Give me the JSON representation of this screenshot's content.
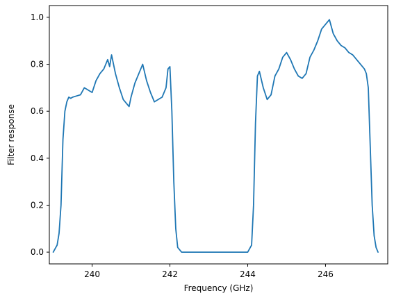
{
  "chart_data": {
    "type": "line",
    "title": "",
    "xlabel": "Frequency (GHz)",
    "ylabel": "Filter response",
    "xlim": [
      238.9,
      247.6
    ],
    "ylim": [
      -0.05,
      1.05
    ],
    "xticks": [
      240,
      242,
      244,
      246
    ],
    "yticks": [
      0.0,
      0.2,
      0.4,
      0.6,
      0.8,
      1.0
    ],
    "grid": false,
    "legend": "none",
    "series": [
      {
        "color": "#1f77b4",
        "x": [
          239.0,
          239.1,
          239.15,
          239.2,
          239.25,
          239.3,
          239.35,
          239.4,
          239.45,
          239.5,
          239.6,
          239.7,
          239.8,
          239.9,
          240.0,
          240.1,
          240.2,
          240.3,
          240.35,
          240.4,
          240.45,
          240.5,
          240.6,
          240.7,
          240.8,
          240.9,
          240.95,
          241.0,
          241.1,
          241.2,
          241.3,
          241.4,
          241.5,
          241.6,
          241.7,
          241.8,
          241.9,
          241.95,
          242.0,
          242.05,
          242.1,
          242.15,
          242.2,
          242.3,
          242.4,
          243.0,
          244.0,
          244.1,
          244.15,
          244.2,
          244.25,
          244.3,
          244.4,
          244.5,
          244.6,
          244.7,
          244.8,
          244.9,
          245.0,
          245.1,
          245.2,
          245.3,
          245.4,
          245.5,
          245.6,
          245.7,
          245.8,
          245.9,
          246.0,
          246.1,
          246.2,
          246.3,
          246.4,
          246.5,
          246.6,
          246.7,
          246.8,
          246.9,
          247.0,
          247.05,
          247.1,
          247.15,
          247.2,
          247.25,
          247.3,
          247.35
        ],
        "y": [
          0.0,
          0.03,
          0.08,
          0.2,
          0.48,
          0.6,
          0.64,
          0.66,
          0.655,
          0.66,
          0.665,
          0.67,
          0.7,
          0.69,
          0.68,
          0.73,
          0.76,
          0.78,
          0.8,
          0.82,
          0.79,
          0.84,
          0.76,
          0.7,
          0.65,
          0.63,
          0.62,
          0.66,
          0.72,
          0.76,
          0.8,
          0.73,
          0.68,
          0.64,
          0.65,
          0.66,
          0.7,
          0.78,
          0.79,
          0.6,
          0.3,
          0.1,
          0.02,
          0.0,
          0.0,
          0.0,
          0.0,
          0.03,
          0.2,
          0.55,
          0.75,
          0.77,
          0.7,
          0.65,
          0.67,
          0.75,
          0.78,
          0.83,
          0.85,
          0.82,
          0.78,
          0.75,
          0.74,
          0.76,
          0.83,
          0.86,
          0.9,
          0.95,
          0.97,
          0.99,
          0.93,
          0.9,
          0.88,
          0.87,
          0.85,
          0.84,
          0.82,
          0.8,
          0.78,
          0.76,
          0.7,
          0.45,
          0.2,
          0.07,
          0.02,
          0.0
        ]
      }
    ]
  }
}
